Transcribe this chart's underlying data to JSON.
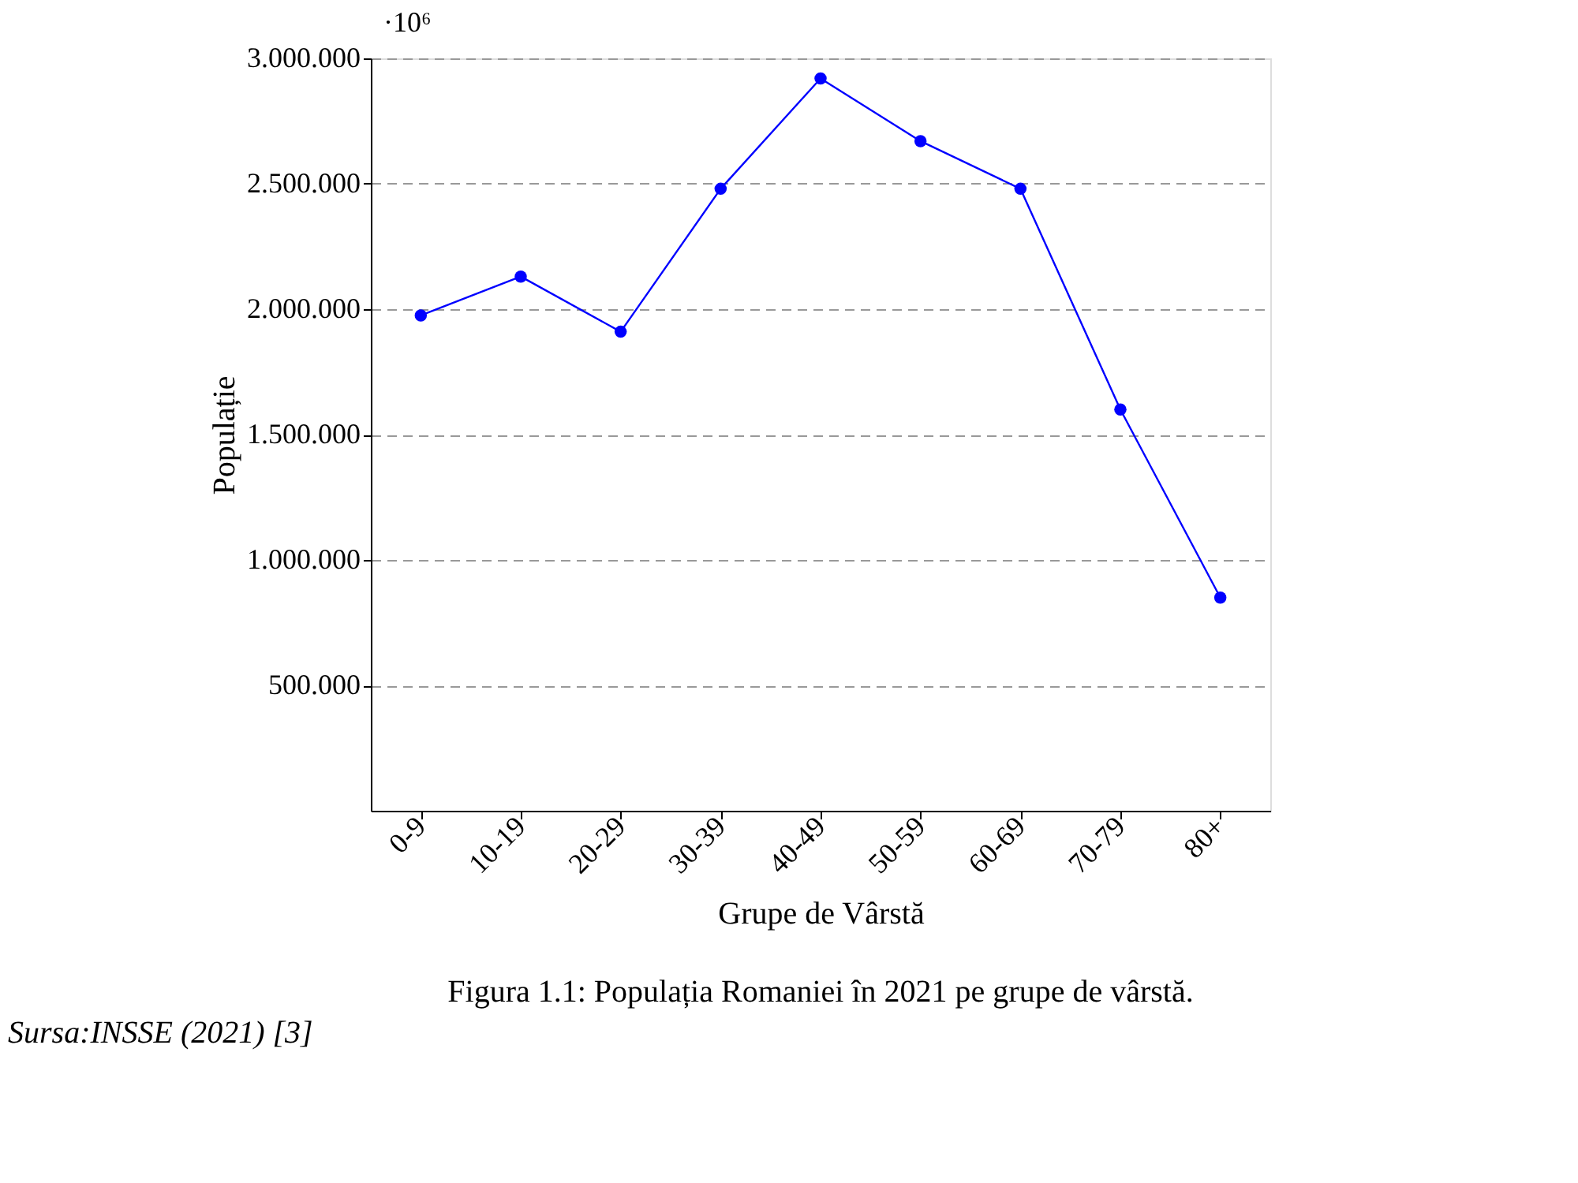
{
  "chart_data": {
    "type": "line",
    "title": "Figura 1.1: Populația Romaniei în 2021 pe grupe de vârstă.",
    "xlabel": "Grupe de Vârstă",
    "ylabel": "Populație",
    "categories": [
      "0-9",
      "10-19",
      "20-29",
      "30-39",
      "40-49",
      "50-59",
      "60-69",
      "70-79",
      "80+"
    ],
    "series": [
      {
        "color": "#0000ff",
        "values": [
          1975000,
          2130000,
          1910000,
          2480000,
          2920000,
          2670000,
          2480000,
          1600000,
          850000
        ]
      }
    ],
    "ylim": [
      0,
      3000000
    ],
    "yticks": [
      {
        "value": 500000,
        "label": "500.000"
      },
      {
        "value": 1000000,
        "label": "1.000.000"
      },
      {
        "value": 1500000,
        "label": "1.500.000"
      },
      {
        "value": 2000000,
        "label": "2.000.000"
      },
      {
        "value": 2500000,
        "label": "2.500.000"
      },
      {
        "value": 3000000,
        "label": "3.000.000"
      }
    ],
    "grid": "y",
    "marker": "circle",
    "line_style": "solid",
    "annotations": [
      "·10⁶",
      "Sursa:INSSE (2021) [3]"
    ]
  }
}
